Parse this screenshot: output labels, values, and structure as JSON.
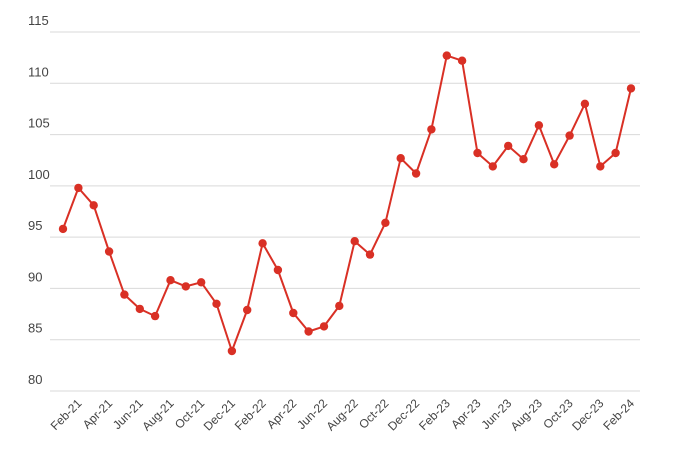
{
  "chart_data": {
    "type": "line",
    "title": "",
    "xlabel": "",
    "ylabel": "",
    "ylim": [
      80,
      115
    ],
    "yticks": [
      "80",
      "85",
      "90",
      "95",
      "100",
      "105",
      "110",
      "115"
    ],
    "grid": true,
    "legend": "none",
    "x": [
      "Jan-21",
      "Feb-21",
      "Mar-21",
      "Apr-21",
      "May-21",
      "Jun-21",
      "Jul-21",
      "Aug-21",
      "Sep-21",
      "Oct-21",
      "Nov-21",
      "Dec-21",
      "Jan-22",
      "Feb-22",
      "Mar-22",
      "Apr-22",
      "May-22",
      "Jun-22",
      "Jul-22",
      "Aug-22",
      "Sep-22",
      "Oct-22",
      "Nov-22",
      "Dec-22",
      "Jan-23",
      "Feb-23",
      "Mar-23",
      "Apr-23",
      "May-23",
      "Jun-23",
      "Jul-23",
      "Aug-23",
      "Sep-23",
      "Oct-23",
      "Nov-23",
      "Dec-23",
      "Jan-24",
      "Feb-24"
    ],
    "xtick_labels": [
      "Feb-21",
      "Apr-21",
      "Jun-21",
      "Aug-21",
      "Oct-21",
      "Dec-21",
      "Feb-22",
      "Apr-22",
      "Jun-22",
      "Aug-22",
      "Oct-22",
      "Dec-22",
      "Feb-23",
      "Apr-23",
      "Jun-23",
      "Aug-23",
      "Oct-23",
      "Dec-23",
      "Feb-24"
    ],
    "series": [
      {
        "color": "#d93025",
        "values": [
          95.8,
          99.8,
          98.1,
          93.6,
          89.4,
          88.0,
          87.3,
          90.8,
          90.2,
          90.6,
          88.5,
          83.9,
          87.9,
          94.4,
          91.8,
          87.6,
          85.8,
          86.3,
          88.3,
          94.6,
          93.3,
          96.4,
          102.7,
          101.2,
          105.5,
          112.7,
          112.2,
          103.2,
          101.9,
          103.9,
          102.6,
          105.9,
          102.1,
          104.9,
          108.0,
          101.9,
          103.2,
          109.5
        ]
      }
    ]
  }
}
